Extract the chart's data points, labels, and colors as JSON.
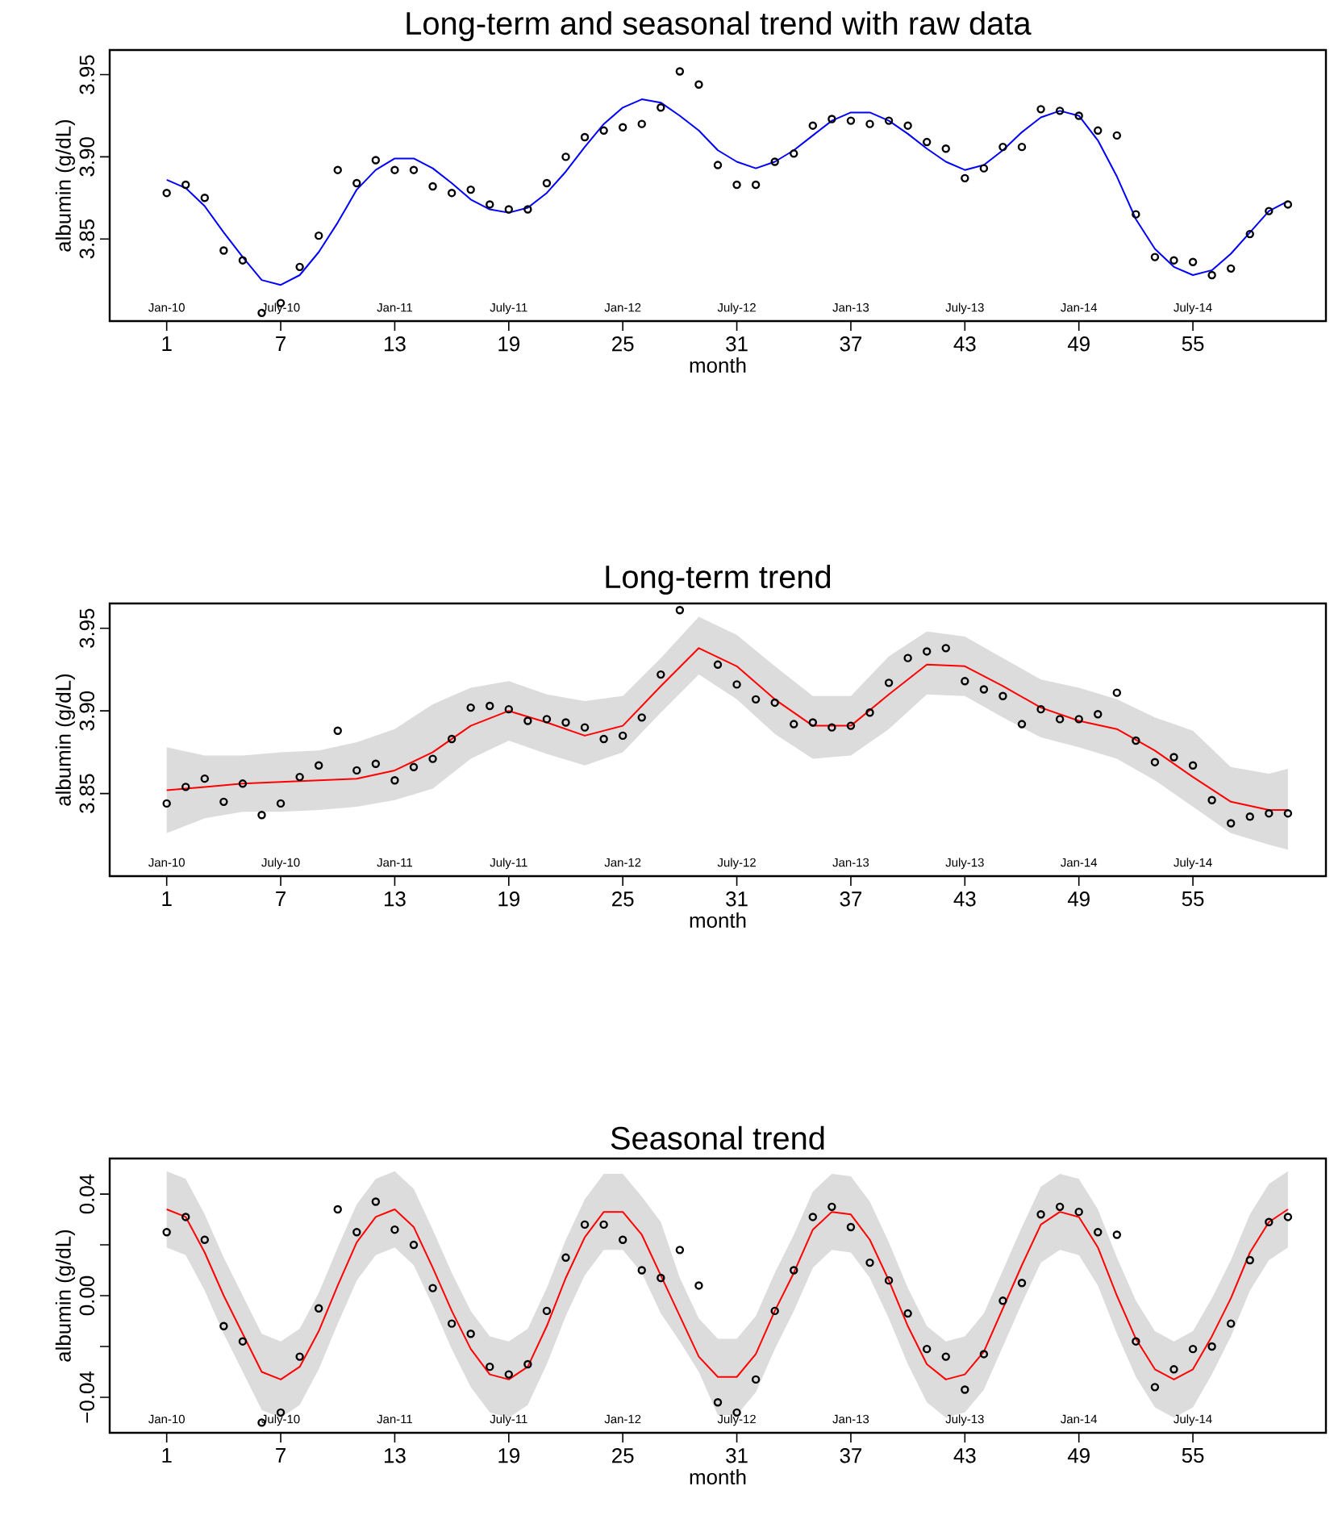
{
  "chart_data": [
    {
      "type": "line",
      "title": "Long-term and seasonal trend with raw data",
      "xlabel": "month",
      "ylabel": "albumin (g/dL)",
      "xlim": [
        -2,
        62
      ],
      "xticks": [
        1,
        7,
        13,
        19,
        25,
        31,
        37,
        43,
        49,
        55
      ],
      "ylim": [
        3.8,
        3.965
      ],
      "yticks": [
        3.85,
        {
          "value": 3.9,
          "label": "3.90"
        },
        3.95
      ],
      "annotations": [
        "Jan-10",
        "July-10",
        "Jan-11",
        "July-11",
        "Jan-12",
        "July-12",
        "Jan-13",
        "July-13",
        "Jan-14",
        "July-14"
      ],
      "series": [
        {
          "type": "scatter",
          "marker": "circle",
          "color": "#000000",
          "x": [
            1,
            2,
            3,
            4,
            5,
            6,
            7,
            8,
            9,
            10,
            11,
            12,
            13,
            14,
            15,
            16,
            17,
            18,
            19,
            20,
            21,
            22,
            23,
            24,
            25,
            26,
            27,
            28,
            29,
            30,
            31,
            32,
            33,
            34,
            35,
            36,
            37,
            38,
            39,
            40,
            41,
            42,
            43,
            44,
            45,
            46,
            47,
            48,
            49,
            50,
            51,
            52,
            53,
            54,
            55,
            56,
            57,
            58,
            59,
            60
          ],
          "values": [
            3.878,
            3.883,
            3.875,
            3.843,
            3.837,
            3.805,
            3.811,
            3.833,
            3.852,
            3.892,
            3.884,
            3.898,
            3.892,
            3.892,
            3.882,
            3.878,
            3.88,
            3.871,
            3.868,
            3.868,
            3.884,
            3.9,
            3.912,
            3.916,
            3.918,
            3.92,
            3.93,
            3.952,
            3.944,
            3.895,
            3.883,
            3.883,
            3.897,
            3.902,
            3.919,
            3.923,
            3.922,
            3.92,
            3.922,
            3.919,
            3.909,
            3.905,
            3.887,
            3.893,
            3.906,
            3.906,
            3.929,
            3.928,
            3.925,
            3.916,
            3.913,
            3.865,
            3.839,
            3.837,
            3.836,
            3.828,
            3.832,
            3.853,
            3.867,
            3.871
          ]
        },
        {
          "color": "#0000ff",
          "x": [
            1,
            2,
            3,
            4,
            5,
            6,
            7,
            8,
            9,
            10,
            11,
            12,
            13,
            14,
            15,
            16,
            17,
            18,
            19,
            20,
            21,
            22,
            23,
            24,
            25,
            26,
            27,
            28,
            29,
            30,
            31,
            32,
            33,
            34,
            35,
            36,
            37,
            38,
            39,
            40,
            41,
            42,
            43,
            44,
            45,
            46,
            47,
            48,
            49,
            50,
            51,
            52,
            53,
            54,
            55,
            56,
            57,
            58,
            59,
            60
          ],
          "values": [
            3.886,
            3.881,
            3.87,
            3.854,
            3.839,
            3.825,
            3.822,
            3.828,
            3.842,
            3.86,
            3.88,
            3.892,
            3.899,
            3.899,
            3.893,
            3.884,
            3.874,
            3.868,
            3.866,
            3.869,
            3.878,
            3.891,
            3.906,
            3.92,
            3.93,
            3.935,
            3.933,
            3.925,
            3.916,
            3.904,
            3.897,
            3.893,
            3.897,
            3.904,
            3.913,
            3.922,
            3.927,
            3.927,
            3.922,
            3.914,
            3.905,
            3.897,
            3.892,
            3.895,
            3.904,
            3.915,
            3.924,
            3.928,
            3.925,
            3.91,
            3.888,
            3.862,
            3.844,
            3.833,
            3.828,
            3.831,
            3.841,
            3.854,
            3.867,
            3.873
          ]
        }
      ]
    },
    {
      "type": "line",
      "title": "Long-term trend",
      "xlabel": "month",
      "ylabel": "albumin (g/dL)",
      "xlim": [
        -2,
        62
      ],
      "xticks": [
        1,
        7,
        13,
        19,
        25,
        31,
        37,
        43,
        49,
        55
      ],
      "ylim": [
        3.8,
        3.965
      ],
      "yticks": [
        3.85,
        {
          "value": 3.9,
          "label": "3.90"
        },
        3.95
      ],
      "annotations": [
        "Jan-10",
        "July-10",
        "Jan-11",
        "July-11",
        "Jan-12",
        "July-12",
        "Jan-13",
        "July-13",
        "Jan-14",
        "July-14"
      ],
      "series": [
        {
          "type": "scatter",
          "marker": "circle",
          "color": "#000000",
          "x": [
            1,
            2,
            3,
            4,
            5,
            6,
            7,
            8,
            9,
            10,
            11,
            12,
            13,
            14,
            15,
            16,
            17,
            18,
            19,
            20,
            21,
            22,
            23,
            24,
            25,
            26,
            27,
            28,
            29,
            30,
            31,
            32,
            33,
            34,
            35,
            36,
            37,
            38,
            39,
            40,
            41,
            42,
            43,
            44,
            45,
            46,
            47,
            48,
            49,
            50,
            51,
            52,
            53,
            54,
            55,
            56,
            57,
            58,
            59,
            60
          ],
          "values": [
            3.844,
            3.854,
            3.859,
            3.845,
            3.856,
            3.837,
            3.844,
            3.86,
            3.867,
            3.888,
            3.864,
            3.868,
            3.858,
            3.866,
            3.871,
            3.883,
            3.902,
            3.903,
            3.901,
            3.894,
            3.895,
            3.893,
            3.89,
            3.883,
            3.885,
            3.896,
            3.922,
            3.961,
            null,
            3.928,
            3.916,
            3.907,
            3.905,
            3.892,
            3.893,
            3.89,
            3.891,
            3.899,
            3.917,
            3.932,
            3.936,
            3.938,
            3.918,
            3.913,
            3.909,
            3.892,
            3.901,
            3.895,
            3.895,
            3.898,
            3.911,
            3.882,
            3.869,
            3.872,
            3.867,
            3.846,
            3.832,
            3.836,
            3.838,
            3.838
          ]
        },
        {
          "color": "#ff0000",
          "x": [
            1,
            3,
            5,
            7,
            9,
            11,
            13,
            15,
            17,
            19,
            21,
            23,
            25,
            27,
            29,
            31,
            33,
            35,
            37,
            39,
            41,
            43,
            45,
            47,
            49,
            51,
            53,
            55,
            57,
            59,
            60
          ],
          "values": [
            3.852,
            3.854,
            3.856,
            3.857,
            3.858,
            3.859,
            3.864,
            3.875,
            3.891,
            3.9,
            3.893,
            3.885,
            3.891,
            3.915,
            3.938,
            3.927,
            3.907,
            3.891,
            3.891,
            3.91,
            3.928,
            3.927,
            3.915,
            3.902,
            3.894,
            3.889,
            3.876,
            3.86,
            3.845,
            3.84,
            3.84
          ],
          "upper": [
            3.878,
            3.873,
            3.873,
            3.875,
            3.876,
            3.881,
            3.889,
            3.904,
            3.914,
            3.918,
            3.91,
            3.906,
            3.909,
            3.932,
            3.957,
            3.946,
            3.927,
            3.909,
            3.909,
            3.933,
            3.948,
            3.945,
            3.932,
            3.919,
            3.914,
            3.907,
            3.896,
            3.888,
            3.866,
            3.862,
            3.865
          ],
          "lower": [
            3.826,
            3.835,
            3.839,
            3.839,
            3.84,
            3.842,
            3.846,
            3.853,
            3.871,
            3.882,
            3.874,
            3.867,
            3.875,
            3.899,
            3.922,
            3.907,
            3.886,
            3.871,
            3.873,
            3.889,
            3.91,
            3.909,
            3.896,
            3.884,
            3.878,
            3.871,
            3.858,
            3.842,
            3.826,
            3.819,
            3.816
          ]
        }
      ]
    },
    {
      "type": "line",
      "title": "Seasonal trend",
      "xlabel": "month",
      "ylabel": "albumin (g/dL)",
      "xlim": [
        -2,
        62
      ],
      "xticks": [
        1,
        7,
        13,
        19,
        25,
        31,
        37,
        43,
        49,
        55
      ],
      "ylim": [
        -0.054,
        0.054
      ],
      "yticks": [
        {
          "value": -0.04,
          "label": "−0.04"
        },
        {
          "value": -0.02,
          "label": null
        },
        {
          "value": 0,
          "label": "0.00"
        },
        {
          "value": 0.02,
          "label": null
        },
        0.04
      ],
      "annotations": [
        "Jan-10",
        "July-10",
        "Jan-11",
        "July-11",
        "Jan-12",
        "July-12",
        "Jan-13",
        "July-13",
        "Jan-14",
        "July-14"
      ],
      "series": [
        {
          "type": "scatter",
          "marker": "circle",
          "color": "#000000",
          "x": [
            1,
            2,
            3,
            4,
            5,
            6,
            7,
            8,
            9,
            10,
            11,
            12,
            13,
            14,
            15,
            16,
            17,
            18,
            19,
            20,
            21,
            22,
            23,
            24,
            25,
            26,
            27,
            28,
            29,
            30,
            31,
            32,
            33,
            34,
            35,
            36,
            37,
            38,
            39,
            40,
            41,
            42,
            43,
            44,
            45,
            46,
            47,
            48,
            49,
            50,
            51,
            52,
            53,
            54,
            55,
            56,
            57,
            58,
            59,
            60
          ],
          "values": [
            0.025,
            0.031,
            0.022,
            -0.012,
            -0.018,
            -0.05,
            -0.046,
            -0.024,
            -0.005,
            0.034,
            0.025,
            0.037,
            0.026,
            0.02,
            0.003,
            -0.011,
            -0.015,
            -0.028,
            -0.031,
            -0.027,
            -0.006,
            0.015,
            0.028,
            0.028,
            0.022,
            0.01,
            0.007,
            0.018,
            0.004,
            -0.042,
            -0.046,
            -0.033,
            -0.006,
            0.01,
            0.031,
            0.035,
            0.027,
            0.013,
            0.006,
            -0.007,
            -0.021,
            -0.024,
            -0.037,
            -0.023,
            -0.002,
            0.005,
            0.032,
            0.035,
            0.033,
            0.025,
            0.024,
            -0.018,
            -0.036,
            -0.029,
            -0.021,
            -0.02,
            -0.011,
            0.014,
            0.029,
            0.031
          ]
        },
        {
          "color": "#ff0000",
          "x": [
            1,
            2,
            3,
            4,
            5,
            6,
            7,
            8,
            9,
            10,
            11,
            12,
            13,
            14,
            15,
            16,
            17,
            18,
            19,
            20,
            21,
            22,
            23,
            24,
            25,
            26,
            27,
            28,
            29,
            30,
            31,
            32,
            33,
            34,
            35,
            36,
            37,
            38,
            39,
            40,
            41,
            42,
            43,
            44,
            45,
            46,
            47,
            48,
            49,
            50,
            51,
            52,
            53,
            54,
            55,
            56,
            57,
            58,
            59,
            60
          ],
          "values": [
            0.034,
            0.031,
            0.017,
            0.0,
            -0.015,
            -0.03,
            -0.033,
            -0.028,
            -0.014,
            0.004,
            0.021,
            0.031,
            0.034,
            0.027,
            0.011,
            -0.006,
            -0.021,
            -0.031,
            -0.033,
            -0.028,
            -0.012,
            0.007,
            0.023,
            0.033,
            0.033,
            0.024,
            0.008,
            -0.008,
            -0.024,
            -0.032,
            -0.032,
            -0.023,
            -0.006,
            0.009,
            0.026,
            0.033,
            0.032,
            0.022,
            0.006,
            -0.012,
            -0.027,
            -0.033,
            -0.031,
            -0.022,
            -0.005,
            0.012,
            0.028,
            0.033,
            0.031,
            0.019,
            0.0,
            -0.017,
            -0.029,
            -0.033,
            -0.029,
            -0.016,
            -0.001,
            0.017,
            0.029,
            0.034
          ],
          "upper": [
            0.049,
            0.046,
            0.032,
            0.015,
            0.0,
            -0.015,
            -0.018,
            -0.013,
            0.001,
            0.019,
            0.036,
            0.046,
            0.049,
            0.042,
            0.026,
            0.009,
            -0.006,
            -0.016,
            -0.018,
            -0.013,
            0.003,
            0.022,
            0.038,
            0.048,
            0.048,
            0.039,
            0.029,
            0.007,
            -0.009,
            -0.017,
            -0.017,
            -0.008,
            0.009,
            0.024,
            0.041,
            0.048,
            0.047,
            0.037,
            0.021,
            0.003,
            -0.012,
            -0.018,
            -0.016,
            -0.007,
            0.01,
            0.027,
            0.043,
            0.048,
            0.046,
            0.034,
            0.015,
            -0.002,
            -0.014,
            -0.018,
            -0.014,
            -0.001,
            0.014,
            0.032,
            0.044,
            0.049
          ],
          "lower": [
            0.019,
            0.016,
            0.002,
            -0.015,
            -0.03,
            -0.045,
            -0.048,
            -0.043,
            -0.029,
            -0.011,
            0.006,
            0.016,
            0.019,
            0.012,
            -0.004,
            -0.021,
            -0.036,
            -0.046,
            -0.048,
            -0.043,
            -0.027,
            -0.008,
            0.008,
            0.018,
            0.018,
            0.009,
            -0.007,
            -0.018,
            -0.03,
            -0.047,
            -0.047,
            -0.038,
            -0.021,
            -0.006,
            0.011,
            0.018,
            0.017,
            0.007,
            -0.009,
            -0.027,
            -0.042,
            -0.048,
            -0.046,
            -0.037,
            -0.02,
            -0.003,
            0.013,
            0.018,
            0.016,
            0.004,
            -0.015,
            -0.032,
            -0.044,
            -0.048,
            -0.044,
            -0.031,
            -0.016,
            0.002,
            0.014,
            0.019
          ]
        }
      ]
    }
  ]
}
